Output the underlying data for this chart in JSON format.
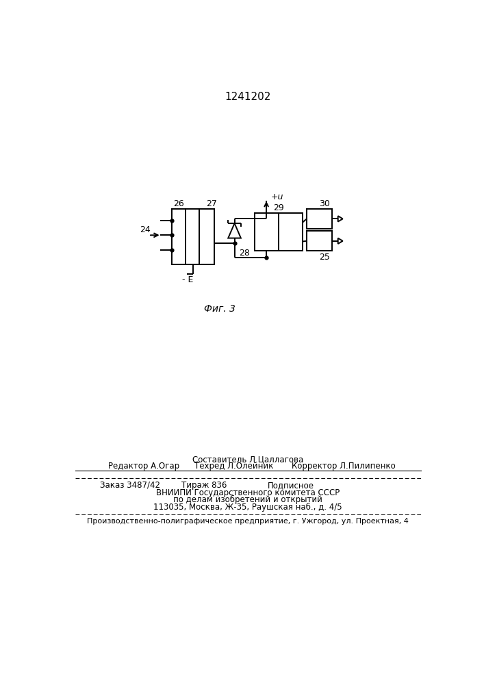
{
  "title": "1241202",
  "fig_label": "Фиг. 3",
  "bg": "#ffffff",
  "lc": "#000000",
  "footer_line1": "Составитель Л.Цаллагова",
  "footer_line2a": "Редактор А.Огар",
  "footer_line2b": "Техред Л.Олейник",
  "footer_line2c": "Корректор Л.Пилипенко",
  "footer_line3a": "Заказ 3487/42",
  "footer_line3b": "Тираж 836",
  "footer_line3c": "Подписное",
  "footer_line4": "ВНИИПИ Государственного комитета СССР",
  "footer_line5": "по делам изобретений и открытий",
  "footer_line6": "113035, Москва, Ж-35, Раушская наб., д. 4/5",
  "footer_line7": "Производственно-полиграфическое предприятие, г. Ужгород, ул. Проектная, 4"
}
